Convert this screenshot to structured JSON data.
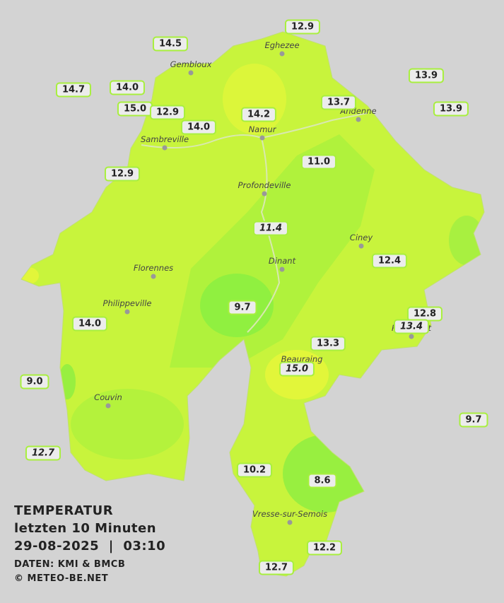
{
  "map": {
    "legend": {
      "title": "TEMPERATUR",
      "period": "letzten 10 Minuten",
      "date": "29-08-2025",
      "separator": "|",
      "time": "03:10",
      "source": "DATEN: KMI & BMCB",
      "copyright": "© METEO-BE.NET"
    },
    "cities": [
      "Eghezee",
      "Gembloux",
      "Andenne",
      "Namur",
      "Sambreville",
      "Profondeville",
      "Ciney",
      "Dinant",
      "Florennes",
      "Philippeville",
      "Rochefort",
      "Beauraing",
      "Couvin",
      "Vresse-sur-Semois"
    ],
    "stations": [
      {
        "label": "12.9"
      },
      {
        "label": "14.5"
      },
      {
        "label": "13.9"
      },
      {
        "label": "14.7"
      },
      {
        "label": "14.0"
      },
      {
        "label": "15.0"
      },
      {
        "label": "12.9"
      },
      {
        "label": "14.0"
      },
      {
        "label": "14.2"
      },
      {
        "label": "13.7"
      },
      {
        "label": "13.9"
      },
      {
        "label": "11.0"
      },
      {
        "label": "12.9"
      },
      {
        "label": "11.4",
        "italic": true
      },
      {
        "label": "12.4"
      },
      {
        "label": "9.7"
      },
      {
        "label": "12.8"
      },
      {
        "label": "13.4",
        "italic": true
      },
      {
        "label": "14.0"
      },
      {
        "label": "13.3"
      },
      {
        "label": "15.0",
        "italic": true
      },
      {
        "label": "9.0"
      },
      {
        "label": "9.7"
      },
      {
        "label": "12.7",
        "italic": true
      },
      {
        "label": "10.2"
      },
      {
        "label": "8.6"
      },
      {
        "label": "12.2"
      },
      {
        "label": "12.7"
      }
    ]
  }
}
